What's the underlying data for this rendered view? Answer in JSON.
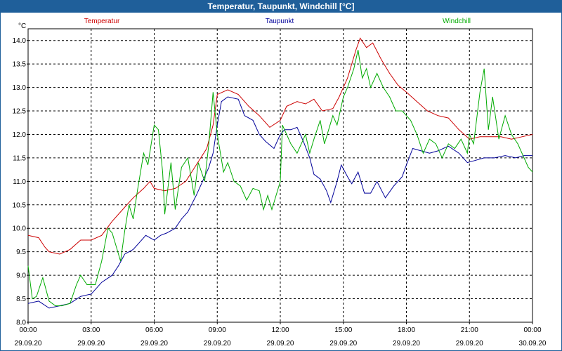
{
  "window": {
    "title": "Temperatur, Taupunkt, Windchill [°C]"
  },
  "chart_data": {
    "type": "line",
    "title": "Temperatur, Taupunkt, Windchill [°C]",
    "ylabel": "°C",
    "ylim": [
      8.0,
      14.25
    ],
    "xlim": [
      0,
      24
    ],
    "yticks": [
      8.0,
      8.5,
      9.0,
      9.5,
      10.0,
      10.5,
      11.0,
      11.5,
      12.0,
      12.5,
      13.0,
      13.5,
      14.0
    ],
    "ytick_labels": [
      "8.0",
      "8.5",
      "9.0",
      "9.5",
      "10.0",
      "10.5",
      "11.0",
      "11.5",
      "12.0",
      "12.5",
      "13.0",
      "13.5",
      "14.0"
    ],
    "xticks": [
      0,
      3,
      6,
      9,
      12,
      15,
      18,
      21,
      24
    ],
    "xtick_time_labels": [
      "00:00",
      "03:00",
      "06:00",
      "09:00",
      "12:00",
      "15:00",
      "18:00",
      "21:00",
      "00:00"
    ],
    "xtick_date_labels": [
      "29.09.20",
      "29.09.20",
      "29.09.20",
      "29.09.20",
      "29.09.20",
      "29.09.20",
      "29.09.20",
      "29.09.20",
      "30.09.20"
    ],
    "grid": true,
    "legend": [
      "Temperatur",
      "Taupunkt",
      "Windchill"
    ],
    "series": [
      {
        "name": "Temperatur",
        "color": "#cc0000",
        "points": [
          [
            0,
            9.85
          ],
          [
            0.5,
            9.8
          ],
          [
            0.8,
            9.6
          ],
          [
            1.0,
            9.5
          ],
          [
            1.5,
            9.45
          ],
          [
            2.0,
            9.55
          ],
          [
            2.5,
            9.75
          ],
          [
            3.0,
            9.75
          ],
          [
            3.5,
            9.85
          ],
          [
            4.0,
            10.15
          ],
          [
            4.5,
            10.4
          ],
          [
            5.0,
            10.65
          ],
          [
            5.5,
            10.85
          ],
          [
            5.8,
            11.0
          ],
          [
            6.0,
            10.85
          ],
          [
            6.5,
            10.8
          ],
          [
            7.0,
            10.85
          ],
          [
            7.5,
            11.0
          ],
          [
            8.0,
            11.35
          ],
          [
            8.5,
            11.7
          ],
          [
            8.8,
            12.2
          ],
          [
            9.0,
            12.85
          ],
          [
            9.5,
            12.95
          ],
          [
            10.0,
            12.85
          ],
          [
            10.5,
            12.6
          ],
          [
            11.0,
            12.4
          ],
          [
            11.5,
            12.15
          ],
          [
            12.0,
            12.3
          ],
          [
            12.3,
            12.6
          ],
          [
            12.8,
            12.7
          ],
          [
            13.2,
            12.65
          ],
          [
            13.6,
            12.75
          ],
          [
            14.0,
            12.5
          ],
          [
            14.5,
            12.55
          ],
          [
            14.8,
            12.8
          ],
          [
            15.2,
            13.2
          ],
          [
            15.6,
            13.8
          ],
          [
            15.8,
            14.05
          ],
          [
            16.1,
            13.85
          ],
          [
            16.4,
            13.95
          ],
          [
            16.8,
            13.6
          ],
          [
            17.2,
            13.3
          ],
          [
            17.6,
            13.05
          ],
          [
            18.0,
            12.9
          ],
          [
            18.5,
            12.7
          ],
          [
            19.0,
            12.5
          ],
          [
            19.5,
            12.4
          ],
          [
            20.0,
            12.35
          ],
          [
            20.5,
            12.1
          ],
          [
            21.0,
            11.9
          ],
          [
            21.5,
            11.95
          ],
          [
            22.0,
            11.95
          ],
          [
            22.5,
            11.95
          ],
          [
            23.0,
            11.9
          ],
          [
            23.5,
            11.95
          ],
          [
            24.0,
            12.0
          ]
        ]
      },
      {
        "name": "Taupunkt",
        "color": "#000099",
        "points": [
          [
            0,
            8.4
          ],
          [
            0.5,
            8.45
          ],
          [
            1.0,
            8.3
          ],
          [
            1.5,
            8.35
          ],
          [
            2.0,
            8.4
          ],
          [
            2.5,
            8.55
          ],
          [
            3.0,
            8.6
          ],
          [
            3.5,
            8.85
          ],
          [
            4.0,
            9.0
          ],
          [
            4.3,
            9.2
          ],
          [
            4.6,
            9.45
          ],
          [
            5.0,
            9.55
          ],
          [
            5.3,
            9.7
          ],
          [
            5.6,
            9.85
          ],
          [
            6.0,
            9.75
          ],
          [
            6.3,
            9.85
          ],
          [
            6.6,
            9.9
          ],
          [
            7.0,
            10.0
          ],
          [
            7.3,
            10.2
          ],
          [
            7.6,
            10.35
          ],
          [
            8.0,
            10.7
          ],
          [
            8.3,
            11.0
          ],
          [
            8.6,
            11.3
          ],
          [
            8.8,
            11.6
          ],
          [
            9.0,
            12.2
          ],
          [
            9.2,
            12.7
          ],
          [
            9.5,
            12.8
          ],
          [
            10.0,
            12.75
          ],
          [
            10.3,
            12.4
          ],
          [
            10.7,
            12.3
          ],
          [
            11.0,
            12.0
          ],
          [
            11.3,
            11.85
          ],
          [
            11.7,
            11.7
          ],
          [
            12.0,
            12.0
          ],
          [
            12.2,
            12.1
          ],
          [
            12.5,
            12.1
          ],
          [
            12.8,
            12.15
          ],
          [
            13.1,
            11.85
          ],
          [
            13.4,
            11.5
          ],
          [
            13.6,
            11.15
          ],
          [
            13.9,
            11.05
          ],
          [
            14.2,
            10.8
          ],
          [
            14.4,
            10.55
          ],
          [
            14.7,
            11.0
          ],
          [
            14.9,
            11.35
          ],
          [
            15.2,
            11.1
          ],
          [
            15.4,
            10.95
          ],
          [
            15.7,
            11.2
          ],
          [
            16.0,
            10.75
          ],
          [
            16.3,
            10.75
          ],
          [
            16.6,
            11.0
          ],
          [
            17.0,
            10.65
          ],
          [
            17.4,
            10.9
          ],
          [
            17.8,
            11.1
          ],
          [
            18.0,
            11.35
          ],
          [
            18.3,
            11.7
          ],
          [
            18.7,
            11.65
          ],
          [
            19.1,
            11.6
          ],
          [
            19.5,
            11.65
          ],
          [
            20.0,
            11.75
          ],
          [
            20.5,
            11.6
          ],
          [
            20.9,
            11.4
          ],
          [
            21.3,
            11.45
          ],
          [
            21.7,
            11.5
          ],
          [
            22.2,
            11.5
          ],
          [
            22.7,
            11.55
          ],
          [
            23.2,
            11.5
          ],
          [
            23.6,
            11.55
          ],
          [
            24.0,
            11.55
          ]
        ]
      },
      {
        "name": "Windchill",
        "color": "#00aa00",
        "points": [
          [
            0,
            9.2
          ],
          [
            0.2,
            8.5
          ],
          [
            0.4,
            8.55
          ],
          [
            0.7,
            8.95
          ],
          [
            1.0,
            8.45
          ],
          [
            1.3,
            8.35
          ],
          [
            1.6,
            8.35
          ],
          [
            2.0,
            8.4
          ],
          [
            2.3,
            8.8
          ],
          [
            2.5,
            9.0
          ],
          [
            2.8,
            8.8
          ],
          [
            3.2,
            8.8
          ],
          [
            3.5,
            9.3
          ],
          [
            3.8,
            10.0
          ],
          [
            4.0,
            9.9
          ],
          [
            4.2,
            9.6
          ],
          [
            4.4,
            9.3
          ],
          [
            4.6,
            9.95
          ],
          [
            4.8,
            10.5
          ],
          [
            5.0,
            10.2
          ],
          [
            5.2,
            10.8
          ],
          [
            5.5,
            11.6
          ],
          [
            5.7,
            11.35
          ],
          [
            6.0,
            12.2
          ],
          [
            6.2,
            12.1
          ],
          [
            6.4,
            11.2
          ],
          [
            6.5,
            10.3
          ],
          [
            6.8,
            11.4
          ],
          [
            7.0,
            10.4
          ],
          [
            7.3,
            11.3
          ],
          [
            7.6,
            11.5
          ],
          [
            7.9,
            10.7
          ],
          [
            8.1,
            11.4
          ],
          [
            8.4,
            11.0
          ],
          [
            8.6,
            11.8
          ],
          [
            8.8,
            12.9
          ],
          [
            9.0,
            12.0
          ],
          [
            9.3,
            11.2
          ],
          [
            9.5,
            11.4
          ],
          [
            9.8,
            11.0
          ],
          [
            10.1,
            10.9
          ],
          [
            10.4,
            10.6
          ],
          [
            10.7,
            10.85
          ],
          [
            11.0,
            10.8
          ],
          [
            11.2,
            10.4
          ],
          [
            11.4,
            10.7
          ],
          [
            11.6,
            10.4
          ],
          [
            11.8,
            10.7
          ],
          [
            12.0,
            11.0
          ],
          [
            12.1,
            12.2
          ],
          [
            12.3,
            12.0
          ],
          [
            12.5,
            11.8
          ],
          [
            12.8,
            11.6
          ],
          [
            13.0,
            11.8
          ],
          [
            13.2,
            12.0
          ],
          [
            13.4,
            11.6
          ],
          [
            13.6,
            11.9
          ],
          [
            13.9,
            12.3
          ],
          [
            14.1,
            11.8
          ],
          [
            14.3,
            12.1
          ],
          [
            14.5,
            12.4
          ],
          [
            14.7,
            12.2
          ],
          [
            15.0,
            12.8
          ],
          [
            15.2,
            13.0
          ],
          [
            15.5,
            13.4
          ],
          [
            15.7,
            13.8
          ],
          [
            15.9,
            13.2
          ],
          [
            16.1,
            13.4
          ],
          [
            16.3,
            13.0
          ],
          [
            16.6,
            13.3
          ],
          [
            16.9,
            13.0
          ],
          [
            17.2,
            12.8
          ],
          [
            17.5,
            12.5
          ],
          [
            17.8,
            12.5
          ],
          [
            18.2,
            12.3
          ],
          [
            18.5,
            12.0
          ],
          [
            18.8,
            11.6
          ],
          [
            19.1,
            11.9
          ],
          [
            19.4,
            11.8
          ],
          [
            19.7,
            11.5
          ],
          [
            20.0,
            11.8
          ],
          [
            20.3,
            11.7
          ],
          [
            20.6,
            11.9
          ],
          [
            20.9,
            11.6
          ],
          [
            21.0,
            12.0
          ],
          [
            21.2,
            11.8
          ],
          [
            21.5,
            12.9
          ],
          [
            21.7,
            13.4
          ],
          [
            21.9,
            12.1
          ],
          [
            22.1,
            12.8
          ],
          [
            22.4,
            11.9
          ],
          [
            22.7,
            12.4
          ],
          [
            23.0,
            12.0
          ],
          [
            23.3,
            11.8
          ],
          [
            23.5,
            11.6
          ],
          [
            23.8,
            11.3
          ],
          [
            24.0,
            11.2
          ]
        ]
      }
    ]
  }
}
